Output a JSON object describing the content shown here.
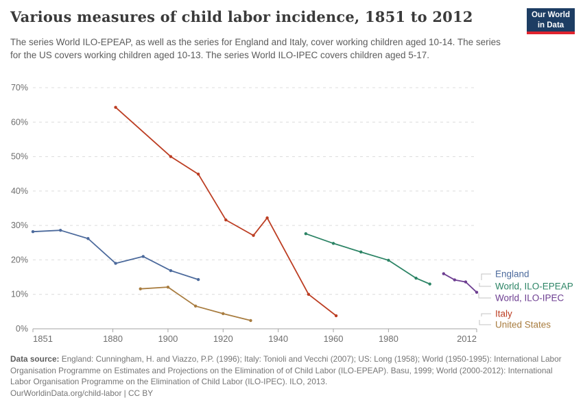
{
  "header": {
    "title": "Various measures of child labor incidence, 1851 to 2012",
    "subtitle": "The series World ILO-EPEAP, as well as the series for England and Italy, cover working children aged 10-14. The series for the US covers working children aged 10-13. The series World ILO-IPEC covers children aged 5-17.",
    "logo": {
      "line1": "Our World",
      "line2": "in Data",
      "bg_color": "#1d3d63",
      "accent_color": "#e0232e"
    }
  },
  "chart_data": {
    "type": "line",
    "title": "Various measures of child labor incidence, 1851 to 2012",
    "xlabel": "",
    "ylabel": "",
    "xlim": [
      1851,
      2012
    ],
    "ylim": [
      0,
      70
    ],
    "x_ticks": [
      1851,
      1880,
      1900,
      1920,
      1940,
      1960,
      1980,
      2012
    ],
    "y_ticks": [
      0,
      10,
      20,
      30,
      40,
      50,
      60,
      70
    ],
    "y_tick_suffix": "%",
    "grid": "horizontal-dashed",
    "legend_position": "right-of-plot",
    "series": [
      {
        "name": "England",
        "color": "#4C6A9C",
        "points": [
          [
            1851,
            28.2
          ],
          [
            1861,
            28.6
          ],
          [
            1871,
            26.2
          ],
          [
            1881,
            19.0
          ],
          [
            1891,
            21.0
          ],
          [
            1901,
            16.9
          ],
          [
            1911,
            14.3
          ]
        ]
      },
      {
        "name": "World, ILO-EPEAP",
        "color": "#2C8465",
        "points": [
          [
            1950,
            27.6
          ],
          [
            1960,
            24.8
          ],
          [
            1970,
            22.3
          ],
          [
            1980,
            19.9
          ],
          [
            1990,
            14.7
          ],
          [
            1995,
            13.0
          ]
        ]
      },
      {
        "name": "World, ILO-IPEC",
        "color": "#6D3E91",
        "points": [
          [
            2000,
            16.0
          ],
          [
            2004,
            14.2
          ],
          [
            2008,
            13.6
          ],
          [
            2012,
            10.6
          ]
        ]
      },
      {
        "name": "Italy",
        "color": "#BC3D22",
        "points": [
          [
            1881,
            64.3
          ],
          [
            1901,
            50.0
          ],
          [
            1911,
            44.9
          ],
          [
            1921,
            31.6
          ],
          [
            1931,
            27.1
          ],
          [
            1936,
            32.2
          ],
          [
            1951,
            10.0
          ],
          [
            1961,
            3.8
          ]
        ]
      },
      {
        "name": "United States",
        "color": "#A87C3F",
        "points": [
          [
            1890,
            11.6
          ],
          [
            1900,
            12.1
          ],
          [
            1910,
            6.6
          ],
          [
            1920,
            4.4
          ],
          [
            1930,
            2.4
          ]
        ]
      }
    ]
  },
  "footer": {
    "source_label": "Data source:",
    "source_text": "England: Cunningham, H. and Viazzo, P.P. (1996); Italy: Tonioli and Vecchi (2007); US: Long (1958); World (1950-1995): International Labor Organisation Programme on Estimates and Projections on the Elimination of of Child Labor (ILO-EPEAP). Basu, 1999; World (2000-2012): International Labor Organisation Programme on the Elimination of Child Labor (ILO-IPEC). ILO, 2013.",
    "link_text": "OurWorldinData.org/child-labor | CC BY"
  }
}
